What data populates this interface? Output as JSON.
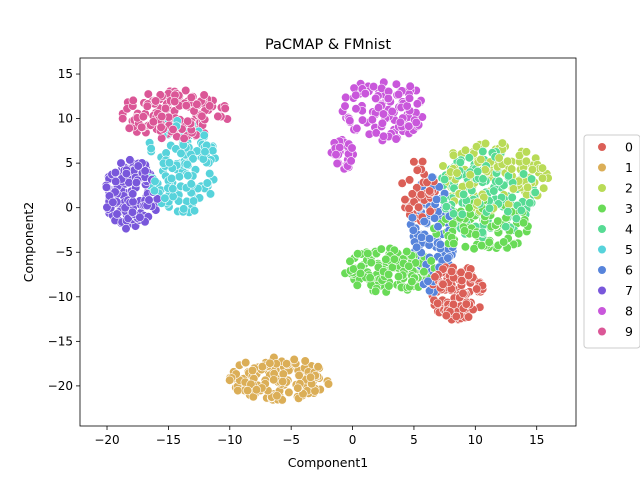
{
  "chart_data": {
    "type": "scatter",
    "title": "PaCMAP & FMnist",
    "xlabel": "Component1",
    "ylabel": "Component2",
    "xlim": [
      -22.2,
      18.2
    ],
    "ylim": [
      -24.5,
      16.8
    ],
    "xticks": [
      -20,
      -15,
      -10,
      -5,
      0,
      5,
      10,
      15
    ],
    "yticks": [
      -20,
      -15,
      -10,
      -5,
      0,
      5,
      10,
      15
    ],
    "legend_position": "center-right outside",
    "marker": "circle, white edge",
    "series": [
      {
        "name": "0",
        "color": "#db5f57",
        "clusters": [
          {
            "cx": 8.5,
            "cy": -9.5,
            "rx": 2.2,
            "ry": 3.2,
            "n": 140
          },
          {
            "cx": 5.5,
            "cy": 2.0,
            "rx": 1.5,
            "ry": 3.5,
            "n": 50
          }
        ]
      },
      {
        "name": "1",
        "color": "#dbae57",
        "clusters": [
          {
            "cx": -6.0,
            "cy": -19.2,
            "rx": 4.2,
            "ry": 2.4,
            "n": 160
          }
        ]
      },
      {
        "name": "2",
        "color": "#b9db57",
        "clusters": [
          {
            "cx": 11.5,
            "cy": 3.5,
            "rx": 4.5,
            "ry": 4.0,
            "n": 130
          }
        ]
      },
      {
        "name": "3",
        "color": "#69db57",
        "clusters": [
          {
            "cx": 3.0,
            "cy": -7.0,
            "rx": 3.8,
            "ry": 2.5,
            "n": 150
          },
          {
            "cx": 10.5,
            "cy": -2.0,
            "rx": 4.0,
            "ry": 3.0,
            "n": 90
          }
        ]
      },
      {
        "name": "4",
        "color": "#57db94",
        "clusters": [
          {
            "cx": 11.0,
            "cy": 1.5,
            "rx": 4.0,
            "ry": 5.0,
            "n": 150
          }
        ]
      },
      {
        "name": "5",
        "color": "#57d3db",
        "clusters": [
          {
            "cx": -14.0,
            "cy": 4.5,
            "rx": 3.0,
            "ry": 5.5,
            "n": 150
          }
        ]
      },
      {
        "name": "6",
        "color": "#5784db",
        "clusters": [
          {
            "cx": 6.5,
            "cy": -3.0,
            "rx": 1.8,
            "ry": 6.5,
            "n": 110
          }
        ]
      },
      {
        "name": "7",
        "color": "#7957db",
        "clusters": [
          {
            "cx": -18.0,
            "cy": 1.5,
            "rx": 2.2,
            "ry": 4.0,
            "n": 150
          }
        ]
      },
      {
        "name": "8",
        "color": "#c957db",
        "clusters": [
          {
            "cx": 2.5,
            "cy": 11.0,
            "rx": 3.5,
            "ry": 3.5,
            "n": 120
          },
          {
            "cx": -0.8,
            "cy": 6.0,
            "rx": 1.0,
            "ry": 1.8,
            "n": 30
          }
        ]
      },
      {
        "name": "9",
        "color": "#db5797",
        "clusters": [
          {
            "cx": -14.5,
            "cy": 10.5,
            "rx": 4.5,
            "ry": 2.8,
            "n": 150
          }
        ]
      }
    ]
  }
}
